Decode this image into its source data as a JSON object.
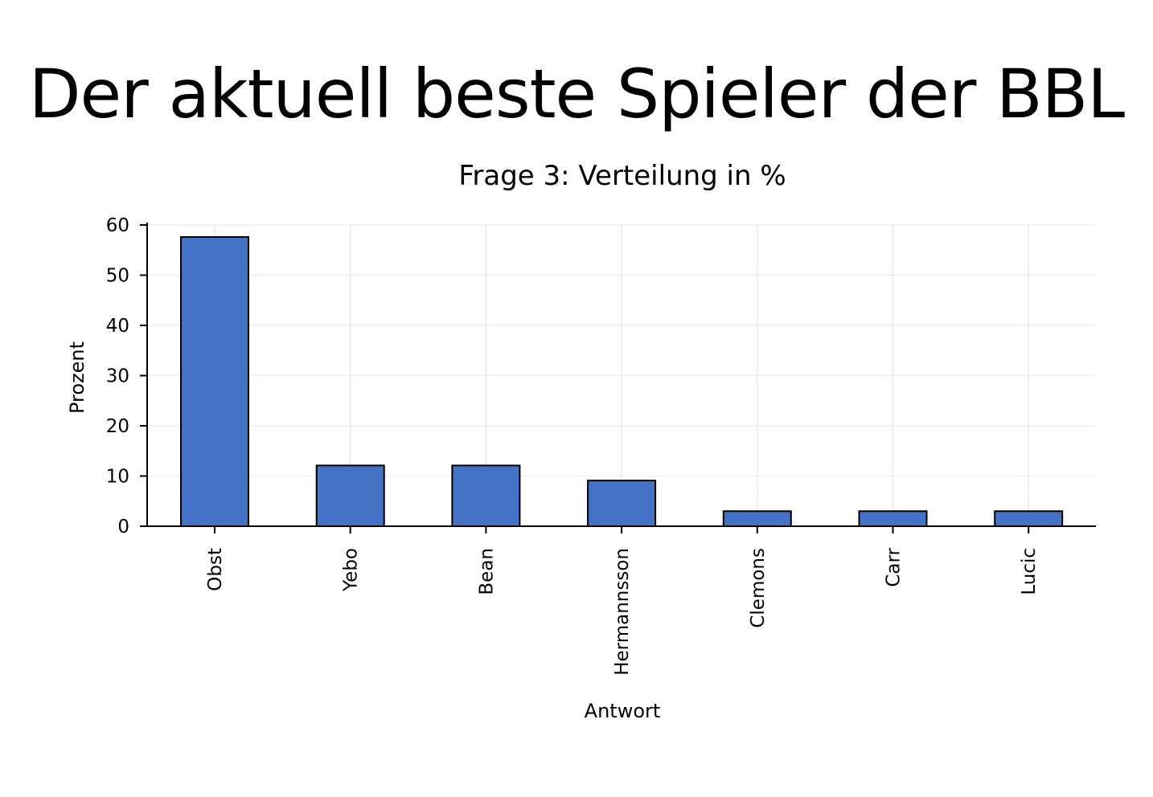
{
  "slide": {
    "title": "Der aktuell beste Spieler der BBL"
  },
  "chart_data": {
    "type": "bar",
    "title": "Frage 3: Verteilung in %",
    "xlabel": "Antwort",
    "ylabel": "Prozent",
    "categories": [
      "Obst",
      "Yebo",
      "Bean",
      "Hermannsson",
      "Clemons",
      "Carr",
      "Lucic"
    ],
    "values": [
      57.6,
      12.1,
      12.1,
      9.1,
      3.0,
      3.0,
      3.0
    ],
    "ylim": [
      0,
      60
    ],
    "yticks": [
      0,
      10,
      20,
      30,
      40,
      50,
      60
    ],
    "grid": true,
    "legend": "none",
    "bar_color": "#4472c4",
    "bar_edge_color": "#000000"
  }
}
